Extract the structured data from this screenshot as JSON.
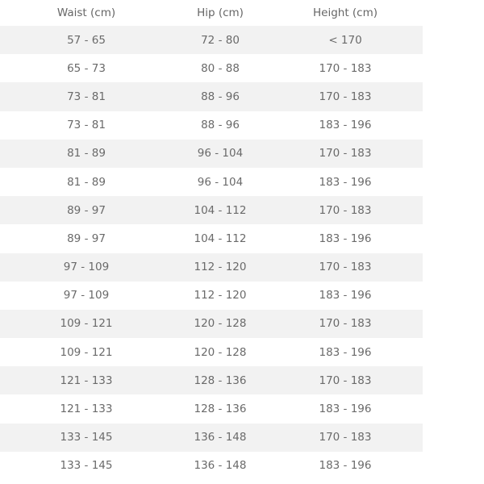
{
  "table": {
    "headers": [
      "Waist (cm)",
      "Hip (cm)",
      "Height (cm)"
    ],
    "rows": [
      [
        "57 - 65",
        "72 - 80",
        "< 170"
      ],
      [
        "65 - 73",
        "80 - 88",
        "170 - 183"
      ],
      [
        "73 - 81",
        "88 - 96",
        "170 - 183"
      ],
      [
        "73 - 81",
        "88 - 96",
        "183 - 196"
      ],
      [
        "81 - 89",
        "96 - 104",
        "170 - 183"
      ],
      [
        "81 - 89",
        "96 - 104",
        "183 - 196"
      ],
      [
        "89 - 97",
        "104 - 112",
        "170 - 183"
      ],
      [
        "89 - 97",
        "104 - 112",
        "183 - 196"
      ],
      [
        "97 - 109",
        "112 - 120",
        "170 - 183"
      ],
      [
        "97 - 109",
        "112 - 120",
        "183 - 196"
      ],
      [
        "109 - 121",
        "120 - 128",
        "170 - 183"
      ],
      [
        "109 - 121",
        "120 - 128",
        "183 - 196"
      ],
      [
        "121 - 133",
        "128 - 136",
        "170 - 183"
      ],
      [
        "121 - 133",
        "128 - 136",
        "183 - 196"
      ],
      [
        "133 - 145",
        "136 - 148",
        "170 - 183"
      ],
      [
        "133 - 145",
        "136 - 148",
        "183 - 196"
      ]
    ],
    "stripe_color": "#f2f2f2",
    "text_color": "#6a6a6a"
  }
}
